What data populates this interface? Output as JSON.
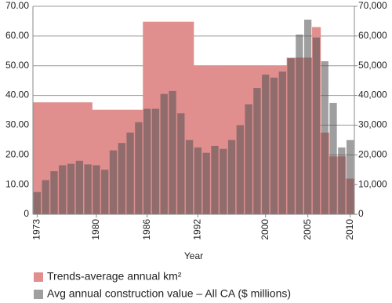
{
  "chart_data": {
    "type": "bar",
    "x_label": "Year",
    "categories": [
      "1973",
      null,
      null,
      null,
      null,
      null,
      null,
      "1980",
      null,
      null,
      null,
      null,
      null,
      "1986",
      null,
      null,
      null,
      null,
      null,
      "1992",
      null,
      null,
      null,
      null,
      null,
      null,
      null,
      "2000",
      null,
      null,
      null,
      null,
      "2005",
      null,
      null,
      null,
      null,
      "2010"
    ],
    "series": [
      {
        "name": "Trends-average annual km²",
        "color": "#e08e8e",
        "values": [
          37.7,
          37.7,
          37.7,
          37.7,
          37.7,
          37.7,
          37.7,
          35.2,
          35.2,
          35.2,
          35.2,
          35.2,
          35.2,
          64.8,
          64.8,
          64.8,
          64.8,
          64.8,
          64.8,
          50,
          50,
          50,
          50,
          50,
          50,
          50,
          50,
          50,
          50,
          50,
          52.7,
          52.7,
          52.7,
          63,
          27.5,
          19.5,
          19.5,
          12
        ]
      },
      {
        "name": "Avg annual construction value – All CA ($ millions)",
        "color": "rgba(80,80,80,0.55)",
        "axis": "y2",
        "values": [
          7500,
          11500,
          14500,
          16500,
          17000,
          18000,
          16800,
          16500,
          15000,
          21500,
          24000,
          27500,
          31000,
          35500,
          35500,
          40500,
          41500,
          34000,
          25000,
          22500,
          20700,
          23000,
          22000,
          25000,
          30000,
          37000,
          42500,
          47000,
          46000,
          48000,
          52500,
          60500,
          65500,
          59500,
          51500,
          37500,
          22500,
          25000
        ]
      }
    ],
    "ylim": [
      0,
      70
    ],
    "yticks": [
      0,
      {
        "value": 10,
        "label": "10.00"
      },
      {
        "value": 20,
        "label": "20.00"
      },
      {
        "value": 30,
        "label": "30.00"
      },
      {
        "value": 40,
        "label": "40.00"
      },
      {
        "value": 50,
        "label": "50.00"
      },
      {
        "value": 60,
        "label": "60.00"
      },
      {
        "value": 70,
        "label": "70.00"
      }
    ],
    "y2lim": [
      0,
      70000
    ],
    "y2ticks": [
      0,
      {
        "value": 10000,
        "label": "10,000"
      },
      {
        "value": 20000,
        "label": "20,000"
      },
      {
        "value": 30000,
        "label": "30,000"
      },
      {
        "value": 40000,
        "label": "40,000"
      },
      {
        "value": 50000,
        "label": "50,000"
      },
      {
        "value": 60000,
        "label": "60,000"
      },
      {
        "value": 70000,
        "label": "70,000"
      }
    ],
    "grid": true,
    "legend": "bottom"
  }
}
